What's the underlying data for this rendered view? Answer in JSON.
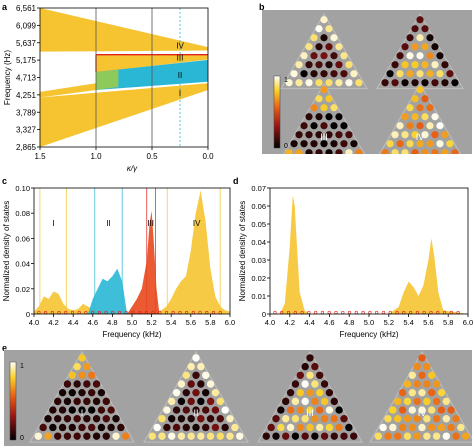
{
  "panel_labels": {
    "a": "a",
    "b": "b",
    "c": "c",
    "d": "d",
    "e": "e"
  },
  "chart_data": [
    {
      "id": "a",
      "type": "area",
      "ylabel": "Frequency (Hz)",
      "xlabel": "κ/γ",
      "x_ticks": [
        "1.5",
        "1.0",
        "0.5",
        "0.0"
      ],
      "y_ticks": [
        "2,865",
        "3,327",
        "3,789",
        "4,251",
        "4,713",
        "5,175",
        "5,637",
        "6,099",
        "6,561"
      ],
      "ylim": [
        2865,
        6561
      ],
      "xlim": [
        1.5,
        0.0
      ],
      "band_labels": [
        "IV",
        "III",
        "II",
        "I"
      ],
      "vertical_lines": [
        1.0,
        0.5
      ],
      "dotted_line": 0.25,
      "red_line_freq": 5320,
      "colors": {
        "band": "#f6c431",
        "teal": "#2ab7d6",
        "green": "#8ec95b",
        "red": "#e2231a",
        "grid": "#555555"
      }
    },
    {
      "id": "c",
      "type": "area",
      "ylabel": "Normalized density of states",
      "xlabel": "Frequency (kHz)",
      "x_ticks": [
        "4.0",
        "4.2",
        "4.4",
        "4.6",
        "4.8",
        "5.0",
        "5.2",
        "5.4",
        "5.6",
        "5.8",
        "6.0"
      ],
      "y_ticks": [
        "0",
        "0.02",
        "0.04",
        "0.06",
        "0.08",
        "0.10"
      ],
      "xlim": [
        4.0,
        6.0
      ],
      "ylim": [
        0,
        0.1
      ],
      "region_labels": [
        "I",
        "II",
        "III",
        "IV"
      ],
      "series": [
        {
          "color": "#f6c431",
          "x": [
            4.0,
            4.05,
            4.1,
            4.15,
            4.2,
            4.25,
            4.3,
            4.35,
            4.4,
            4.45,
            4.5,
            4.55,
            4.6,
            4.65,
            4.7,
            4.75,
            4.8,
            4.85,
            4.9,
            4.95,
            5.0,
            5.05,
            5.1,
            5.15,
            5.2,
            5.25,
            5.3,
            5.35,
            5.4,
            5.45,
            5.5,
            5.55,
            5.6,
            5.65,
            5.7,
            5.75,
            5.8,
            5.85,
            5.9,
            5.95,
            6.0
          ],
          "y": [
            0.002,
            0.006,
            0.014,
            0.012,
            0.018,
            0.016,
            0.008,
            0.004,
            0.003,
            0.004,
            0.008,
            0.006,
            0.004,
            0.002,
            0.002,
            0.001,
            0.001,
            0.001,
            0.001,
            0.001,
            0.001,
            0.001,
            0.001,
            0.001,
            0.001,
            0.001,
            0.003,
            0.006,
            0.012,
            0.02,
            0.026,
            0.03,
            0.05,
            0.08,
            0.098,
            0.074,
            0.036,
            0.014,
            0.006,
            0.003,
            0.002
          ]
        },
        {
          "color": "#2ab7d6",
          "x": [
            4.55,
            4.6,
            4.65,
            4.7,
            4.75,
            4.8,
            4.85,
            4.9,
            4.95
          ],
          "y": [
            0.0,
            0.012,
            0.02,
            0.028,
            0.026,
            0.03,
            0.036,
            0.026,
            0.0
          ]
        },
        {
          "color": "#e8491d",
          "x": [
            4.95,
            5.0,
            5.05,
            5.1,
            5.15,
            5.18,
            5.2,
            5.22,
            5.25,
            5.28
          ],
          "y": [
            0.0,
            0.006,
            0.012,
            0.02,
            0.042,
            0.072,
            0.082,
            0.06,
            0.02,
            0.0
          ]
        }
      ],
      "vlines": [
        {
          "x": 4.06,
          "color": "#f6c431"
        },
        {
          "x": 4.33,
          "color": "#f6c431"
        },
        {
          "x": 4.62,
          "color": "#2ab7d6"
        },
        {
          "x": 4.9,
          "color": "#2ab7d6"
        },
        {
          "x": 5.15,
          "color": "#e2231a"
        },
        {
          "x": 5.24,
          "color": "#e2231a"
        },
        {
          "x": 5.36,
          "color": "#f6c431"
        },
        {
          "x": 5.9,
          "color": "#f6c431"
        }
      ]
    },
    {
      "id": "d",
      "type": "area",
      "ylabel": "Normalized density of states",
      "xlabel": "Frequency (kHz)",
      "x_ticks": [
        "4.0",
        "4.2",
        "4.4",
        "4.6",
        "4.8",
        "5.0",
        "5.2",
        "5.4",
        "5.6",
        "5.8",
        "6.0"
      ],
      "y_ticks": [
        "0",
        "0.01",
        "0.02",
        "0.03",
        "0.04",
        "0.05",
        "0.06",
        "0.07"
      ],
      "xlim": [
        4.0,
        6.0
      ],
      "ylim": [
        0,
        0.07
      ],
      "series": [
        {
          "color": "#f6c431",
          "x": [
            4.0,
            4.1,
            4.15,
            4.2,
            4.23,
            4.25,
            4.27,
            4.3,
            4.35,
            4.4,
            4.5,
            5.0,
            5.2,
            5.3,
            5.35,
            5.4,
            5.45,
            5.5,
            5.55,
            5.6,
            5.63,
            5.66,
            5.7,
            5.75,
            6.0
          ],
          "y": [
            0.0,
            0.0,
            0.006,
            0.038,
            0.066,
            0.06,
            0.04,
            0.012,
            0.002,
            0.0,
            0.0,
            0.0,
            0.0,
            0.004,
            0.012,
            0.018,
            0.015,
            0.01,
            0.016,
            0.03,
            0.042,
            0.032,
            0.012,
            0.002,
            0.0
          ]
        }
      ]
    }
  ],
  "panel_b": {
    "colorbar_ticks": [
      "1",
      "0"
    ],
    "triangle_labels": [
      "",
      "",
      "III",
      "IV"
    ]
  },
  "panel_e": {
    "colorbar_ticks": [
      "1",
      "0"
    ],
    "triangle_labels": [
      "I",
      "II",
      "III",
      "IV"
    ]
  }
}
